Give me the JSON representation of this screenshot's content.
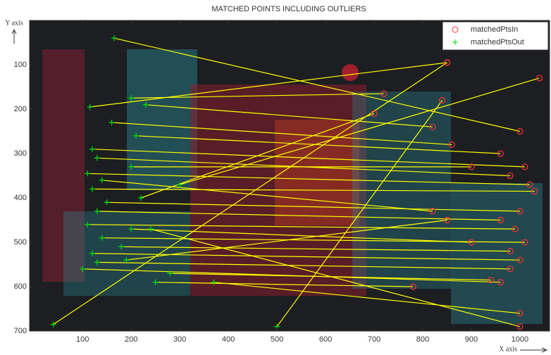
{
  "chart_data": {
    "type": "matched-points",
    "title": "MATCHED POINTS INCLUDING OUTLIERS",
    "x_label": "X axis",
    "y_label": "Y axis",
    "xlim": [
      -9,
      1061
    ],
    "ylim": [
      0,
      700
    ],
    "y_reversed": true,
    "xticks": [
      100,
      200,
      300,
      400,
      500,
      600,
      700,
      800,
      900,
      1000
    ],
    "yticks": [
      100,
      200,
      300,
      400,
      500,
      600,
      700
    ],
    "line_color": "#ffff00",
    "legend": "upper-right",
    "series": [
      {
        "name": "matchedPtsIn",
        "color": "#ff3030",
        "marker": "circle",
        "x": [
          1000,
          820,
          720,
          850,
          960,
          1010,
          980,
          1020,
          900,
          1030,
          1000,
          960,
          990,
          900,
          1010,
          980,
          1000,
          980,
          940,
          780,
          850,
          1000,
          960,
          1040,
          700,
          860,
          1000,
          850,
          820,
          840
        ],
        "y": [
          250,
          240,
          165,
          95,
          300,
          330,
          350,
          370,
          330,
          385,
          430,
          450,
          470,
          500,
          500,
          520,
          540,
          560,
          585,
          600,
          95,
          690,
          590,
          130,
          210,
          280,
          660,
          450,
          430,
          180
        ]
      },
      {
        "name": "matchedPtsOut",
        "color": "#00dd00",
        "marker": "plus",
        "x": [
          165,
          230,
          200,
          115,
          210,
          120,
          130,
          110,
          200,
          120,
          150,
          130,
          110,
          200,
          140,
          180,
          120,
          130,
          280,
          250,
          40,
          240,
          100,
          300,
          220,
          160,
          370,
          190,
          140,
          500
        ],
        "y": [
          40,
          190,
          175,
          195,
          260,
          290,
          310,
          345,
          330,
          380,
          410,
          430,
          460,
          470,
          490,
          510,
          525,
          545,
          570,
          590,
          685,
          470,
          560,
          370,
          400,
          230,
          590,
          540,
          360,
          690
        ]
      }
    ]
  }
}
